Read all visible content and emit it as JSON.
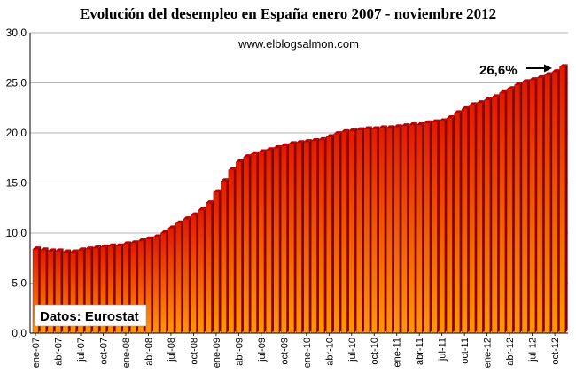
{
  "chart_data": {
    "type": "bar",
    "title": "Evolución del desempleo en España enero 2007 - noviembre 2012",
    "subtitle": "www.elblogsalmon.com",
    "source_note": "Datos: Eurostat",
    "annotation": "26,6%",
    "xlabel": "",
    "ylabel": "",
    "ylim": [
      0,
      30
    ],
    "y_ticks": [
      "0,0",
      "5,0",
      "10,0",
      "15,0",
      "20,0",
      "25,0",
      "30,0"
    ],
    "grid": true,
    "legend": "none",
    "colors": {
      "bar_top": "#e01a00",
      "bar_bottom": "#ff9900",
      "bar_dark": "#7a0000",
      "grid": "#9a9a9a"
    },
    "x_tick_labels": [
      "ene-07",
      "abr-07",
      "jul-07",
      "oct-07",
      "ene-08",
      "abr-08",
      "jul-08",
      "oct-08",
      "ene-09",
      "abr-09",
      "jul-09",
      "oct-09",
      "ene-10",
      "abr-10",
      "jul-10",
      "oct-10",
      "ene-11",
      "abr-11",
      "jul-11",
      "oct-11",
      "ene-12",
      "abr-12",
      "jul-12",
      "oct-12"
    ],
    "categories": [
      "ene-07",
      "feb-07",
      "mar-07",
      "abr-07",
      "may-07",
      "jun-07",
      "jul-07",
      "ago-07",
      "sep-07",
      "oct-07",
      "nov-07",
      "dic-07",
      "ene-08",
      "feb-08",
      "mar-08",
      "abr-08",
      "may-08",
      "jun-08",
      "jul-08",
      "ago-08",
      "sep-08",
      "oct-08",
      "nov-08",
      "dic-08",
      "ene-09",
      "feb-09",
      "mar-09",
      "abr-09",
      "may-09",
      "jun-09",
      "jul-09",
      "ago-09",
      "sep-09",
      "oct-09",
      "nov-09",
      "dic-09",
      "ene-10",
      "feb-10",
      "mar-10",
      "abr-10",
      "may-10",
      "jun-10",
      "jul-10",
      "ago-10",
      "sep-10",
      "oct-10",
      "nov-10",
      "dic-10",
      "ene-11",
      "feb-11",
      "mar-11",
      "abr-11",
      "may-11",
      "jun-11",
      "jul-11",
      "ago-11",
      "sep-11",
      "oct-11",
      "nov-11",
      "dic-11",
      "ene-12",
      "feb-12",
      "mar-12",
      "abr-12",
      "may-12",
      "jun-12",
      "jul-12",
      "ago-12",
      "sep-12",
      "oct-12",
      "nov-12"
    ],
    "values": [
      8.4,
      8.3,
      8.2,
      8.2,
      8.1,
      8.1,
      8.3,
      8.4,
      8.5,
      8.6,
      8.7,
      8.7,
      8.9,
      9.0,
      9.2,
      9.4,
      9.6,
      10.0,
      10.5,
      11.0,
      11.4,
      11.8,
      12.3,
      13.0,
      14.1,
      15.2,
      16.3,
      17.1,
      17.6,
      17.9,
      18.1,
      18.3,
      18.5,
      18.7,
      18.9,
      19.0,
      19.1,
      19.2,
      19.3,
      19.6,
      19.9,
      20.1,
      20.2,
      20.3,
      20.4,
      20.4,
      20.5,
      20.5,
      20.6,
      20.7,
      20.8,
      20.8,
      21.0,
      21.1,
      21.2,
      21.5,
      22.0,
      22.4,
      22.8,
      23.0,
      23.3,
      23.6,
      24.0,
      24.4,
      24.8,
      25.1,
      25.3,
      25.5,
      25.8,
      26.1,
      26.6
    ]
  }
}
